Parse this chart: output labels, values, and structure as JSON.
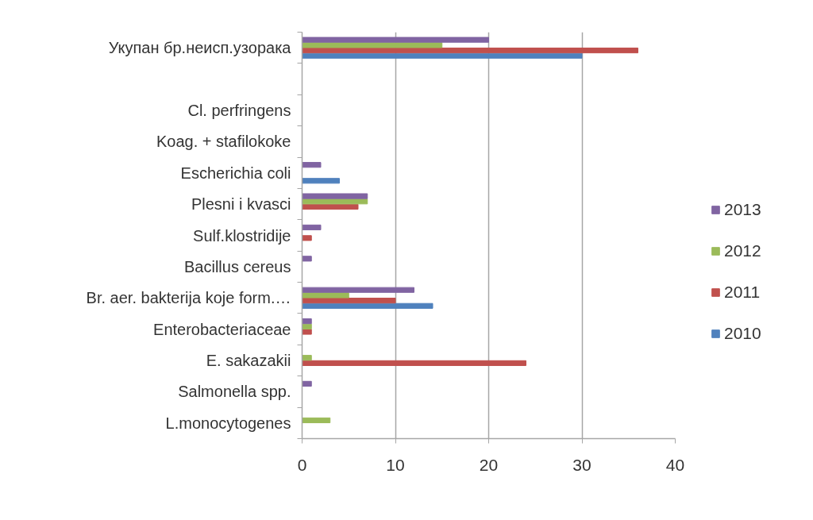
{
  "chart_data": {
    "type": "bar",
    "orientation": "horizontal",
    "categories": [
      "Укупан бр.неисп.узорака",
      null,
      "Cl. perfringens",
      "Koag. + stafilokoke",
      "Escherichia coli",
      "Plesni i kvasci",
      "Sulf.klostridije",
      "Bacillus cereus",
      "Br. aer. bakterija koje form.…",
      "Enterobacteriaceae",
      "E. sakazakii",
      "Salmonella spp.",
      "L.monocytogenes"
    ],
    "series": [
      {
        "name": "2010",
        "color": "#4f81bd",
        "values": [
          30,
          null,
          null,
          null,
          4,
          null,
          null,
          null,
          14,
          null,
          null,
          null,
          null
        ]
      },
      {
        "name": "2011",
        "color": "#c0504d",
        "values": [
          36,
          null,
          null,
          null,
          null,
          6,
          1,
          null,
          10,
          1,
          24,
          null,
          null
        ]
      },
      {
        "name": "2012",
        "color": "#9bbb59",
        "values": [
          15,
          null,
          null,
          null,
          null,
          7,
          null,
          null,
          5,
          1,
          1,
          null,
          3
        ]
      },
      {
        "name": "2013",
        "color": "#8064a2",
        "values": [
          20,
          null,
          null,
          null,
          2,
          7,
          2,
          1,
          12,
          1,
          null,
          1,
          null
        ]
      }
    ],
    "xlim": [
      0,
      40
    ],
    "xticks": [
      0,
      10,
      20,
      30,
      40
    ],
    "grid": "x",
    "legend": "right"
  }
}
